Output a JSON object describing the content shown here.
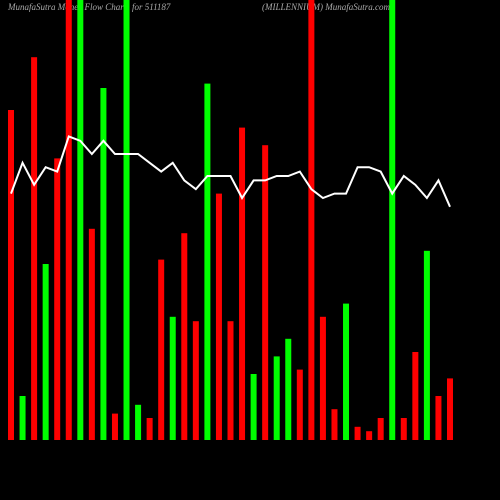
{
  "chart_data": {
    "type": "bar",
    "title": "MunafaSutra  Money Flow  Charts for 511187",
    "subtitle": "(MILLENNIUM) MunafaSutra.com",
    "categories": [
      null,
      null,
      null,
      null,
      null,
      null,
      null,
      null,
      null,
      null,
      null,
      null,
      null,
      null,
      null,
      null,
      null,
      null,
      null,
      null,
      null,
      null,
      null,
      null,
      null,
      null,
      null,
      null,
      null,
      null,
      null,
      null,
      null,
      null,
      null,
      null,
      null,
      null,
      null
    ],
    "values": [
      75,
      10,
      87,
      40,
      64,
      100,
      100,
      48,
      80,
      6,
      100,
      8,
      5,
      41,
      28,
      47,
      27,
      81,
      56,
      27,
      71,
      15,
      67,
      19,
      23,
      16,
      100,
      28,
      7,
      31,
      3,
      2,
      5,
      100,
      5,
      20,
      43,
      10,
      14
    ],
    "colors": [
      "#ff0000",
      "#00ff00",
      "#ff0000",
      "#00ff00",
      "#ff0000",
      "#ff0000",
      "#00ff00",
      "#ff0000",
      "#00ff00",
      "#ff0000",
      "#00ff00",
      "#00ff00",
      "#ff0000",
      "#ff0000",
      "#00ff00",
      "#ff0000",
      "#ff0000",
      "#00ff00",
      "#ff0000",
      "#ff0000",
      "#ff0000",
      "#00ff00",
      "#ff0000",
      "#00ff00",
      "#00ff00",
      "#ff0000",
      "#ff0000",
      "#ff0000",
      "#ff0000",
      "#00ff00",
      "#ff0000",
      "#ff0000",
      "#ff0000",
      "#00ff00",
      "#ff0000",
      "#ff0000",
      "#00ff00",
      "#ff0000",
      "#ff0000"
    ],
    "line": {
      "color": "#ffffff",
      "values": [
        56,
        63,
        58,
        62,
        61,
        69,
        68,
        65,
        68,
        65,
        65,
        65,
        63,
        61,
        63,
        59,
        57,
        60,
        60,
        60,
        55,
        59,
        59,
        60,
        60,
        61,
        57,
        55,
        56,
        56,
        62,
        62,
        61,
        56,
        60,
        58,
        55,
        59,
        53
      ]
    },
    "ylim": [
      0,
      100
    ],
    "background": "#000000"
  }
}
